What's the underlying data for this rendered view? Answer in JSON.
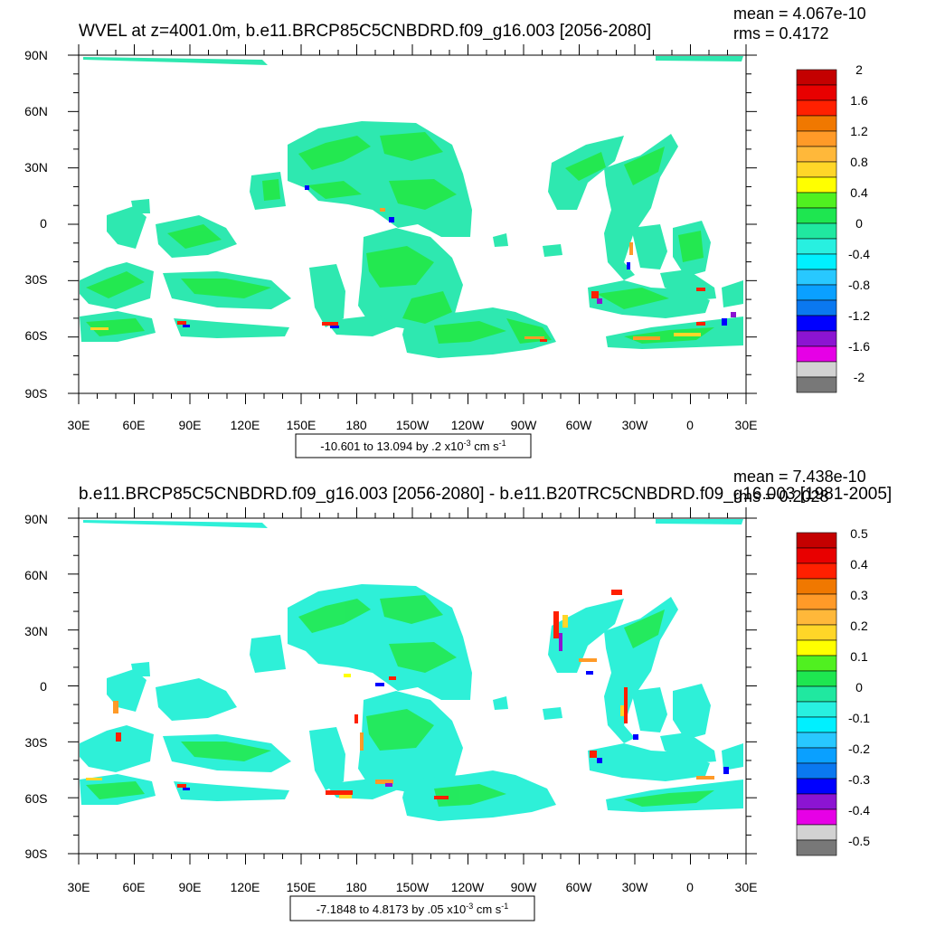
{
  "chart_data": [
    {
      "type": "map-contour",
      "title": "WVEL at z=4001.0m, b.e11.BRCP85C5CNBDRD.f09_g16.003 [2056-2080]",
      "mean_label": "mean = 4.067e-10",
      "rms_label": "rms = 0.4172",
      "contour_info": "-10.601 to 13.094 by .2 x10",
      "contour_info_exp": "-3",
      "contour_info_unit": " cm s",
      "contour_info_unit_exp": "-1",
      "x_ticks": [
        "30E",
        "60E",
        "90E",
        "120E",
        "150E",
        "180",
        "150W",
        "120W",
        "90W",
        "60W",
        "30W",
        "0",
        "30E"
      ],
      "y_ticks": [
        "90N",
        "60N",
        "30N",
        "0",
        "30S",
        "60S",
        "90S"
      ],
      "legend_labels": [
        "2",
        "1.6",
        "1.2",
        "0.8",
        "0.4",
        "0",
        "-0.4",
        "-0.8",
        "-1.2",
        "-1.6",
        "-2"
      ],
      "colors": [
        "#c40000",
        "#e80000",
        "#ff2000",
        "#f07800",
        "#ff9a28",
        "#ffb83a",
        "#ffd628",
        "#ffff00",
        "#50f020",
        "#1ee650",
        "#20e8a0",
        "#28f0e0",
        "#00f0ff",
        "#28c8ff",
        "#0aa0ff",
        "#0a78f0",
        "#0000ff",
        "#8c14d2",
        "#e600e6",
        "#d2d2d2",
        "#787878"
      ]
    },
    {
      "type": "map-contour",
      "title": "b.e11.BRCP85C5CNBDRD.f09_g16.003 [2056-2080] - b.e11.B20TRC5CNBDRD.f09_g16.003 [1981-2005]",
      "mean_label": "mean = 7.438e-10",
      "rms_label": "rms = 0.2028",
      "contour_info": "-7.1848 to 4.8173 by .05 x10",
      "contour_info_exp": "-3",
      "contour_info_unit": " cm s",
      "contour_info_unit_exp": "-1",
      "x_ticks": [
        "30E",
        "60E",
        "90E",
        "120E",
        "150E",
        "180",
        "150W",
        "120W",
        "90W",
        "60W",
        "30W",
        "0",
        "30E"
      ],
      "y_ticks": [
        "90N",
        "60N",
        "30N",
        "0",
        "30S",
        "60S",
        "90S"
      ],
      "legend_labels": [
        "0.5",
        "0.4",
        "0.3",
        "0.2",
        "0.1",
        "0",
        "-0.1",
        "-0.2",
        "-0.3",
        "-0.4",
        "-0.5"
      ],
      "colors": [
        "#c40000",
        "#e80000",
        "#ff2000",
        "#f07800",
        "#ff9a28",
        "#ffb83a",
        "#ffd628",
        "#ffff00",
        "#50f020",
        "#1ee650",
        "#20e8a0",
        "#28f0e0",
        "#00f0ff",
        "#28c8ff",
        "#0aa0ff",
        "#0a78f0",
        "#0000ff",
        "#8c14d2",
        "#e600e6",
        "#d2d2d2",
        "#787878"
      ]
    }
  ]
}
